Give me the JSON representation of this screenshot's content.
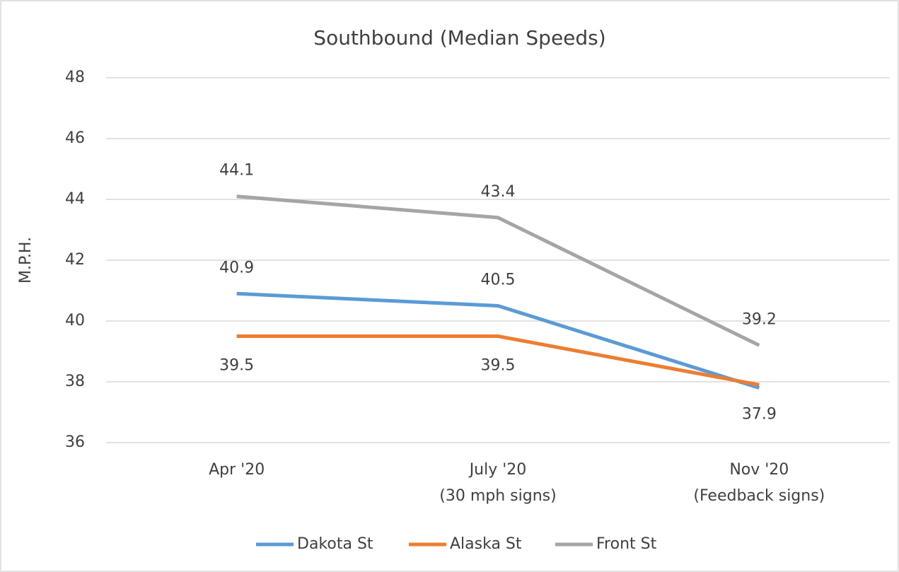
{
  "chart_data": {
    "type": "line",
    "title": "Southbound (Median Speeds)",
    "y_label": "M.P.H.",
    "categories": [
      "Apr '20",
      "July '20\n(30 mph signs)",
      "Nov '20\n(Feedback signs)"
    ],
    "series": [
      {
        "name": "Dakota St",
        "color": "#5b9bd5",
        "values": [
          40.9,
          40.5,
          37.8
        ],
        "value_labels": [
          "40.9",
          "40.5",
          null
        ]
      },
      {
        "name": "Alaska St",
        "color": "#ed7d31",
        "values": [
          39.5,
          39.5,
          37.9
        ],
        "value_labels": [
          "39.5",
          "39.5",
          "37.9"
        ]
      },
      {
        "name": "Front St",
        "color": "#a5a5a5",
        "values": [
          44.1,
          43.4,
          39.2
        ],
        "value_labels": [
          "44.1",
          "43.4",
          "39.2"
        ]
      }
    ],
    "ylim": [
      36,
      48
    ],
    "yticks": [
      36,
      38,
      40,
      42,
      44,
      46,
      48
    ],
    "grid": true,
    "legend": "bottom"
  }
}
